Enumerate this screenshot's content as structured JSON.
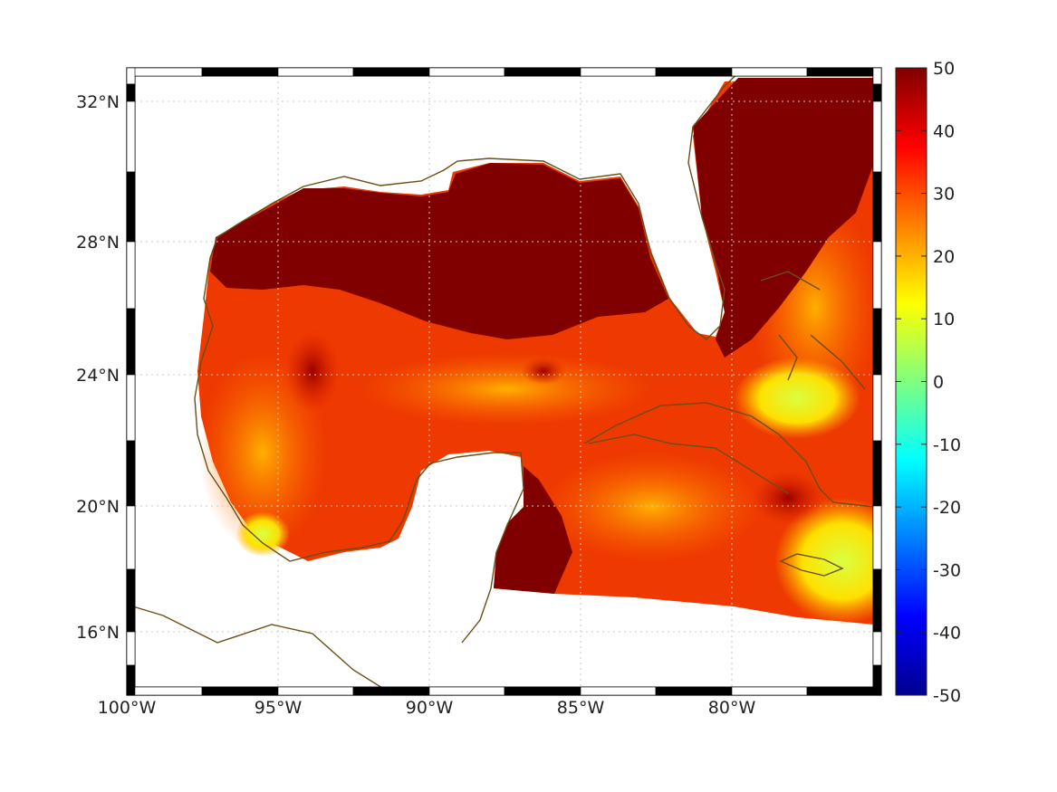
{
  "map": {
    "lon_labels": [
      "100°W",
      "95°W",
      "90°W",
      "85°W",
      "80°W"
    ],
    "lat_labels": [
      "32°N",
      "28°N",
      "24°N",
      "20°N",
      "16°N"
    ],
    "lon_range": [
      -100,
      -75
    ],
    "lat_range": [
      14.2,
      33
    ],
    "grid": "dotted",
    "frame": "black-white checkered",
    "coastline_color": "#6b4e16",
    "land_color": "#ffffff"
  },
  "colorbar": {
    "ticks": [
      "50",
      "40",
      "30",
      "20",
      "10",
      "0",
      "-10",
      "-20",
      "-30",
      "-40",
      "-50"
    ],
    "range": [
      -50,
      50
    ],
    "colormap": "jet"
  }
}
